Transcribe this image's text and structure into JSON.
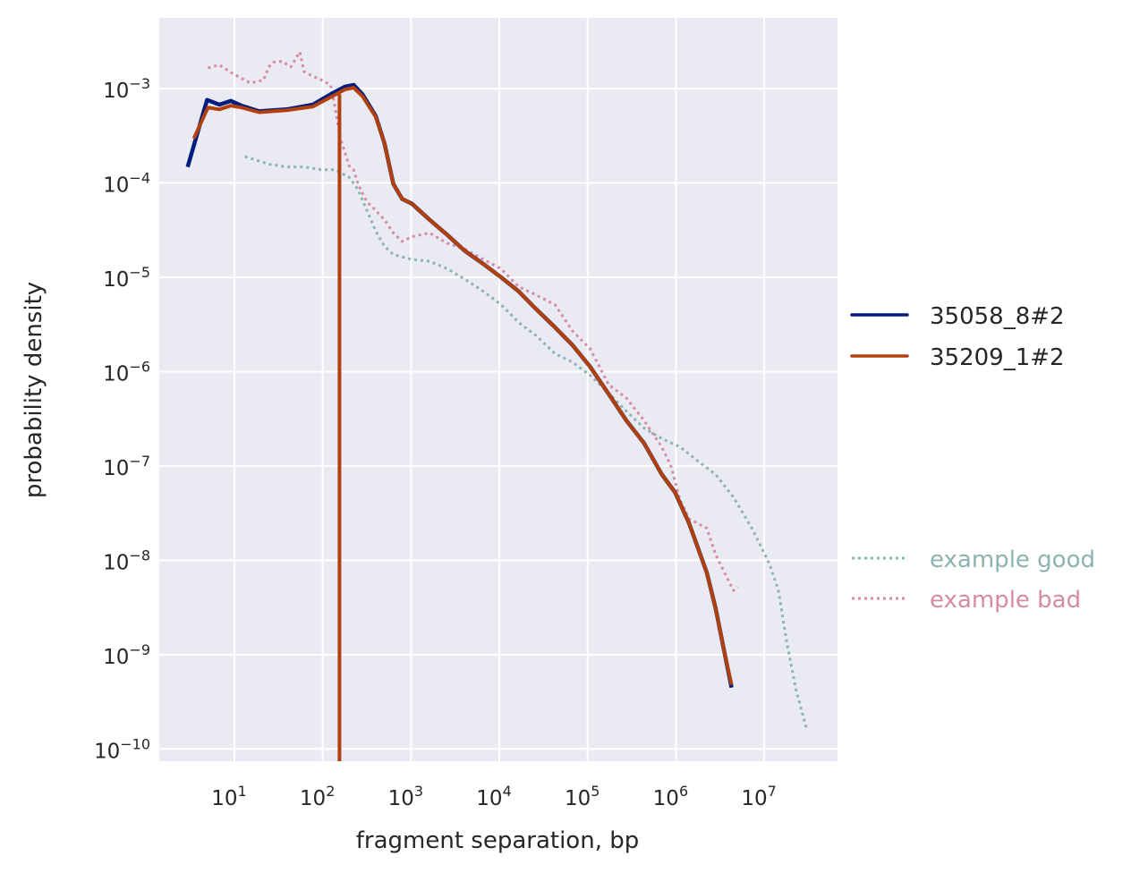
{
  "chart_data": {
    "type": "line",
    "xscale": "log",
    "yscale": "log",
    "xlabel": "fragment separation, bp",
    "ylabel": "probability density",
    "xlim_log10": [
      0.149,
      7.83
    ],
    "ylim_log10": [
      -10.13,
      -2.25
    ],
    "grid": true,
    "tick_base": "10",
    "x_tick_exponents": [
      1,
      2,
      3,
      4,
      5,
      6,
      7
    ],
    "y_tick_exponents": [
      -3,
      -4,
      -5,
      -6,
      -7,
      -8,
      -9,
      -10
    ],
    "legend_placement": "right, outside",
    "series": [
      {
        "name": "35058_8#2",
        "color": "#001c7f",
        "style": "solid",
        "log10_x": [
          0.47,
          0.69,
          0.83,
          0.96,
          1.08,
          1.28,
          1.59,
          1.89,
          2.09,
          2.25,
          2.35,
          2.45,
          2.6,
          2.7,
          2.8,
          2.9,
          3.01,
          3.21,
          3.41,
          3.61,
          3.82,
          4.02,
          4.22,
          4.42,
          4.63,
          4.83,
          5.03,
          5.24,
          5.44,
          5.64,
          5.84,
          5.99,
          6.15,
          6.35,
          6.45,
          6.55,
          6.63
        ],
        "log10_y": [
          -3.83,
          -3.12,
          -3.17,
          -3.13,
          -3.18,
          -3.24,
          -3.22,
          -3.17,
          -3.06,
          -2.98,
          -2.96,
          -3.06,
          -3.29,
          -3.58,
          -4.01,
          -4.17,
          -4.22,
          -4.39,
          -4.55,
          -4.72,
          -4.86,
          -5.0,
          -5.15,
          -5.34,
          -5.53,
          -5.72,
          -5.95,
          -6.24,
          -6.52,
          -6.76,
          -7.09,
          -7.28,
          -7.61,
          -8.13,
          -8.51,
          -8.98,
          -9.35
        ]
      },
      {
        "name": "35209_1#2",
        "color": "#b1400d",
        "style": "solid",
        "log10_x": [
          0.54,
          0.7,
          0.83,
          0.96,
          1.08,
          1.28,
          1.59,
          1.89,
          2.09,
          2.25,
          2.35,
          2.45,
          2.6,
          2.7,
          2.8,
          2.9,
          3.01,
          3.21,
          3.41,
          3.61,
          3.82,
          4.02,
          4.22,
          4.42,
          4.63,
          4.83,
          5.03,
          5.24,
          5.44,
          5.64,
          5.84,
          5.99,
          6.15,
          6.35,
          6.45,
          6.55,
          6.63
        ],
        "log10_y": [
          -3.53,
          -3.2,
          -3.22,
          -3.18,
          -3.2,
          -3.25,
          -3.23,
          -3.19,
          -3.09,
          -3.01,
          -2.99,
          -3.08,
          -3.3,
          -3.58,
          -4.01,
          -4.17,
          -4.22,
          -4.39,
          -4.55,
          -4.72,
          -4.86,
          -5.0,
          -5.15,
          -5.34,
          -5.53,
          -5.72,
          -5.95,
          -6.24,
          -6.52,
          -6.76,
          -7.09,
          -7.28,
          -7.61,
          -8.13,
          -8.51,
          -8.98,
          -9.32
        ],
        "dropout_log10_x": 2.19,
        "dropout_from_log10_y": -3.06
      },
      {
        "name": "example good",
        "color": "#8db3ae",
        "style": "dotted",
        "log10_x": [
          1.12,
          1.39,
          1.59,
          1.79,
          1.99,
          2.14,
          2.3,
          2.4,
          2.5,
          2.6,
          2.7,
          2.8,
          3.01,
          3.21,
          3.41,
          3.61,
          3.82,
          4.02,
          4.22,
          4.42,
          4.63,
          4.83,
          5.03,
          5.24,
          5.44,
          5.64,
          5.84,
          6.05,
          6.25,
          6.45,
          6.65,
          6.86,
          7.06,
          7.16,
          7.26,
          7.36,
          7.48
        ],
        "log10_y": [
          -3.72,
          -3.8,
          -3.83,
          -3.83,
          -3.86,
          -3.86,
          -3.94,
          -4.07,
          -4.29,
          -4.51,
          -4.67,
          -4.76,
          -4.81,
          -4.83,
          -4.91,
          -5.02,
          -5.15,
          -5.29,
          -5.48,
          -5.62,
          -5.81,
          -5.9,
          -6.04,
          -6.23,
          -6.42,
          -6.6,
          -6.71,
          -6.8,
          -6.95,
          -7.09,
          -7.33,
          -7.66,
          -8.04,
          -8.32,
          -8.89,
          -9.37,
          -9.79
        ]
      },
      {
        "name": "example bad",
        "color": "#d58ba6",
        "style": "dotted",
        "log10_x": [
          0.7,
          0.83,
          0.98,
          1.18,
          1.33,
          1.39,
          1.44,
          1.54,
          1.64,
          1.74,
          1.79,
          1.89,
          1.99,
          2.09,
          2.14,
          2.2,
          2.25,
          2.3,
          2.35,
          2.4,
          2.5,
          2.6,
          2.7,
          2.8,
          2.9,
          3.01,
          3.21,
          3.41,
          3.61,
          3.82,
          4.02,
          4.22,
          4.42,
          4.63,
          4.83,
          5.03,
          5.24,
          5.44,
          5.64,
          5.84,
          5.94,
          6.05,
          6.15,
          6.35,
          6.45,
          6.55,
          6.65,
          6.7
        ],
        "log10_y": [
          -2.78,
          -2.75,
          -2.84,
          -2.94,
          -2.91,
          -2.77,
          -2.72,
          -2.71,
          -2.77,
          -2.61,
          -2.82,
          -2.87,
          -2.91,
          -2.96,
          -3.2,
          -3.53,
          -3.67,
          -3.82,
          -3.86,
          -4.01,
          -4.2,
          -4.29,
          -4.39,
          -4.53,
          -4.62,
          -4.57,
          -4.53,
          -4.64,
          -4.7,
          -4.81,
          -4.91,
          -5.1,
          -5.19,
          -5.29,
          -5.57,
          -5.76,
          -6.14,
          -6.28,
          -6.52,
          -6.8,
          -6.99,
          -7.37,
          -7.56,
          -7.66,
          -7.94,
          -8.13,
          -8.32,
          -8.28
        ]
      }
    ]
  }
}
